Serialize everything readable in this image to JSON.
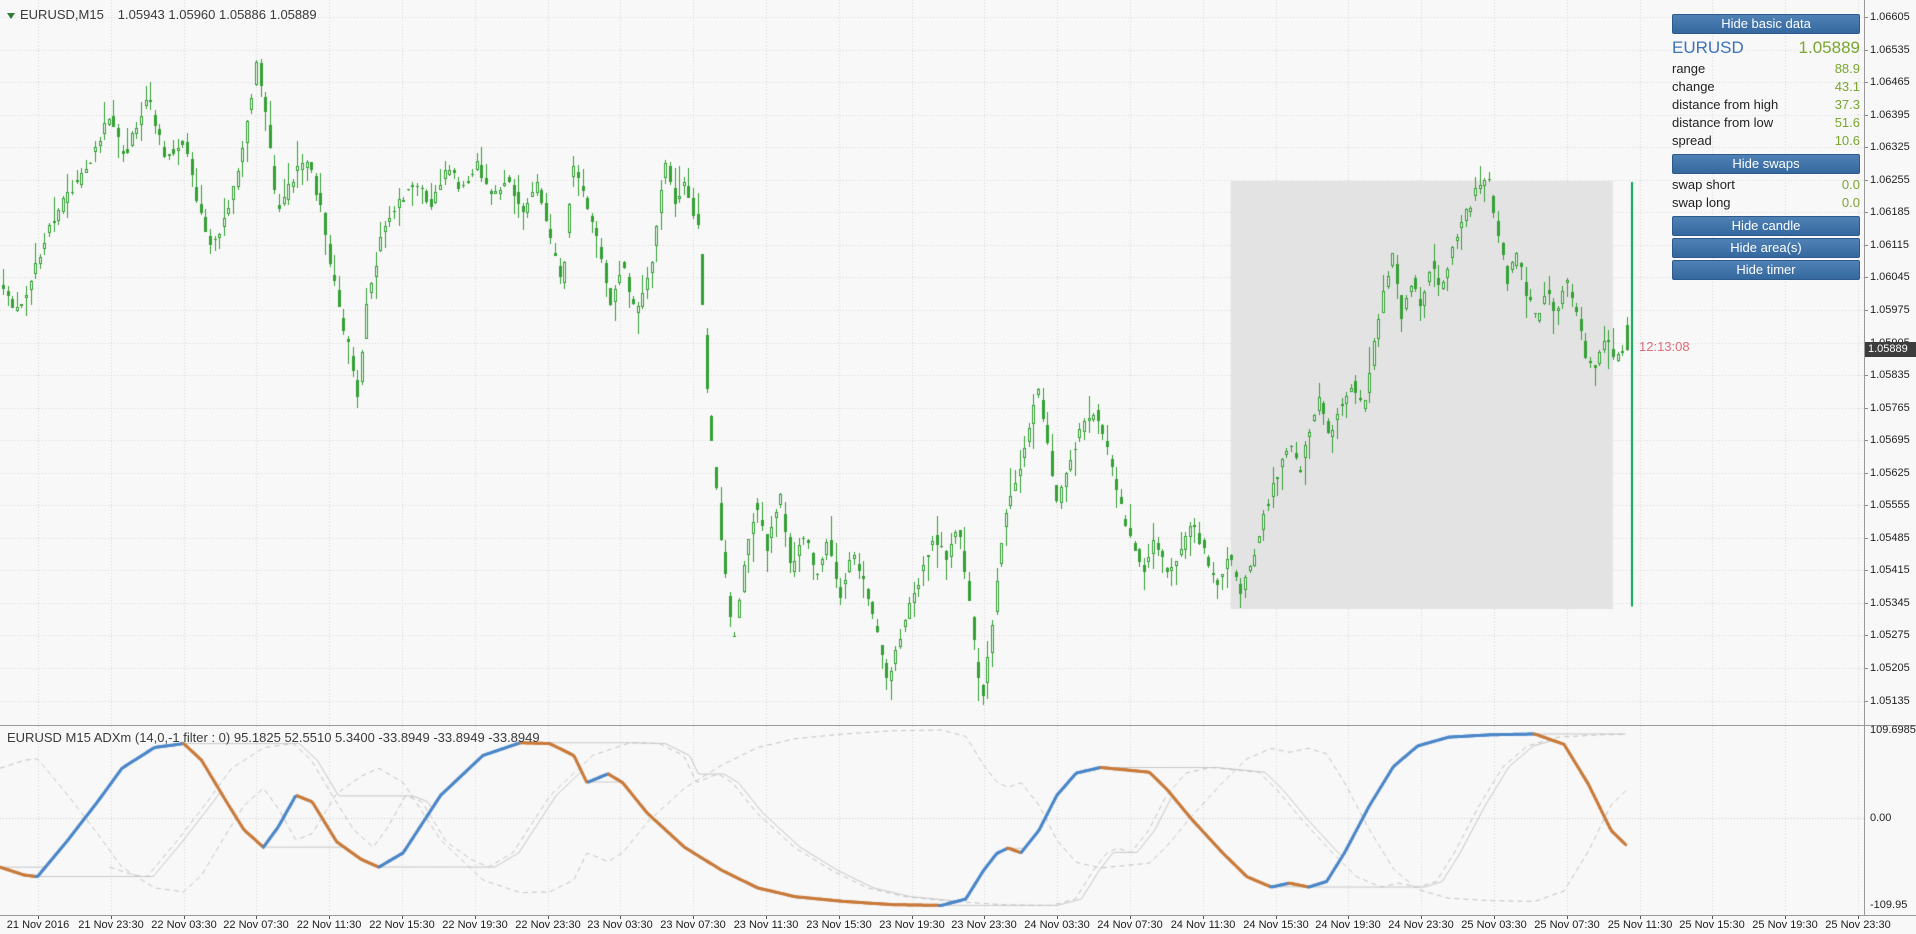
{
  "theme": {
    "bg": "#f8f8f8",
    "grid": "#d9d9d9",
    "candle_green": "#33a033",
    "session_line_green": "#00a651",
    "accent_blue": "#3c72b8",
    "value_green": "#7aa52e",
    "button_blue": "#35689e",
    "timer_red": "#e06a76",
    "indicator_up": "#4a86c8",
    "indicator_down": "#c87a3a",
    "highlight_area_gray": "#e3e3e3",
    "current_tag_bg": "#3d3d3d"
  },
  "header": {
    "symbol_timeframe": "EURUSD,M15",
    "quotes": "1.05943 1.05960 1.05886 1.05889"
  },
  "info_panel": {
    "buttons": {
      "basic": "Hide basic data",
      "swaps": "Hide swaps",
      "candle": "Hide candle",
      "areas": "Hide area(s)",
      "timer": "Hide timer"
    },
    "symbol": "EURUSD",
    "price": "1.05889",
    "rows": [
      {
        "label": "range",
        "value": "88.9"
      },
      {
        "label": "change",
        "value": "43.1"
      },
      {
        "label": "distance from high",
        "value": "37.3"
      },
      {
        "label": "distance from low",
        "value": "51.6"
      },
      {
        "label": "spread",
        "value": "10.6"
      }
    ],
    "swap_rows": [
      {
        "label": "swap short",
        "value": "0.0"
      },
      {
        "label": "swap long",
        "value": "0.0"
      }
    ]
  },
  "timer": {
    "text": "12:13:08"
  },
  "price_axis": {
    "current": "1.05889"
  },
  "indicator": {
    "title": "EURUSD M15 ADXm (14,0,-1 filter : 0) 95.1825 52.5510 5.3400 -33.8949 -33.8949 -33.8949",
    "axis": {
      "top": "109.6985",
      "zero": "0.00",
      "bottom": "-109.95"
    }
  },
  "chart_data": [
    {
      "type": "candlestick",
      "symbol": "EURUSD",
      "timeframe": "M15",
      "last_ohlc": {
        "open": 1.05943,
        "high": 1.0596,
        "low": 1.05886,
        "close": 1.05889
      },
      "current_price": 1.05889,
      "bars": 354,
      "y_axis": {
        "max": 1.06605,
        "min": 1.05135,
        "tick_step": 0.0007,
        "ticks": [
          "1.06605",
          "1.06535",
          "1.06465",
          "1.06395",
          "1.06325",
          "1.06255",
          "1.06185",
          "1.06115",
          "1.06045",
          "1.05975",
          "1.05905",
          "1.05835",
          "1.05765",
          "1.05695",
          "1.05625",
          "1.05555",
          "1.05485",
          "1.05415",
          "1.05345",
          "1.05275",
          "1.05205",
          "1.05135"
        ]
      },
      "x_axis_labels": [
        "21 Nov 2016",
        "21 Nov 23:30",
        "22 Nov 03:30",
        "22 Nov 07:30",
        "22 Nov 11:30",
        "22 Nov 15:30",
        "22 Nov 19:30",
        "22 Nov 23:30",
        "23 Nov 03:30",
        "23 Nov 07:30",
        "23 Nov 11:30",
        "23 Nov 15:30",
        "23 Nov 19:30",
        "23 Nov 23:30",
        "24 Nov 03:30",
        "24 Nov 07:30",
        "24 Nov 11:30",
        "24 Nov 15:30",
        "24 Nov 19:30",
        "24 Nov 23:30",
        "25 Nov 03:30",
        "25 Nov 07:30",
        "25 Nov 11:30",
        "25 Nov 15:30",
        "25 Nov 19:30",
        "25 Nov 23:30"
      ],
      "highlight_area": {
        "from_frac": 0.757,
        "to_frac": 0.992,
        "price_top": 1.06252,
        "price_bottom": 1.05332
      },
      "session_candle_line": {
        "price_high": 1.0625,
        "price_low": 1.05337
      },
      "price_path_anchors": [
        [
          0.0,
          1.0602
        ],
        [
          0.011,
          1.0597
        ],
        [
          0.03,
          1.0615
        ],
        [
          0.041,
          1.0622
        ],
        [
          0.053,
          1.0628
        ],
        [
          0.068,
          1.064
        ],
        [
          0.075,
          1.063
        ],
        [
          0.083,
          1.0636
        ],
        [
          0.09,
          1.0644
        ],
        [
          0.102,
          1.063
        ],
        [
          0.113,
          1.0634
        ],
        [
          0.122,
          1.062
        ],
        [
          0.129,
          1.0611
        ],
        [
          0.137,
          1.0616
        ],
        [
          0.147,
          1.0628
        ],
        [
          0.154,
          1.0642
        ],
        [
          0.158,
          1.0652
        ],
        [
          0.164,
          1.0638
        ],
        [
          0.171,
          1.0618
        ],
        [
          0.18,
          1.0626
        ],
        [
          0.189,
          1.063
        ],
        [
          0.197,
          1.062
        ],
        [
          0.205,
          1.0604
        ],
        [
          0.214,
          1.059
        ],
        [
          0.22,
          1.0578
        ],
        [
          0.226,
          1.06
        ],
        [
          0.235,
          1.0614
        ],
        [
          0.244,
          1.062
        ],
        [
          0.256,
          1.0625
        ],
        [
          0.265,
          1.062
        ],
        [
          0.274,
          1.0628
        ],
        [
          0.284,
          1.0624
        ],
        [
          0.293,
          1.0629
        ],
        [
          0.302,
          1.0622
        ],
        [
          0.312,
          1.0626
        ],
        [
          0.322,
          1.0618
        ],
        [
          0.331,
          1.0625
        ],
        [
          0.34,
          1.061
        ],
        [
          0.346,
          1.0603
        ],
        [
          0.352,
          1.0629
        ],
        [
          0.359,
          1.0622
        ],
        [
          0.368,
          1.0612
        ],
        [
          0.376,
          1.0598
        ],
        [
          0.383,
          1.0608
        ],
        [
          0.391,
          1.0596
        ],
        [
          0.4,
          1.0606
        ],
        [
          0.41,
          1.0631
        ],
        [
          0.415,
          1.062
        ],
        [
          0.421,
          1.0626
        ],
        [
          0.43,
          1.0614
        ],
        [
          0.436,
          1.0575
        ],
        [
          0.444,
          1.0548
        ],
        [
          0.451,
          1.0525
        ],
        [
          0.457,
          1.054
        ],
        [
          0.465,
          1.0556
        ],
        [
          0.472,
          1.0546
        ],
        [
          0.48,
          1.0558
        ],
        [
          0.487,
          1.0542
        ],
        [
          0.495,
          1.055
        ],
        [
          0.502,
          1.054
        ],
        [
          0.51,
          1.0548
        ],
        [
          0.517,
          1.0536
        ],
        [
          0.525,
          1.0545
        ],
        [
          0.532,
          1.0538
        ],
        [
          0.54,
          1.0528
        ],
        [
          0.546,
          1.0518
        ],
        [
          0.553,
          1.0526
        ],
        [
          0.56,
          1.0534
        ],
        [
          0.568,
          1.0542
        ],
        [
          0.575,
          1.0549
        ],
        [
          0.583,
          1.0544
        ],
        [
          0.59,
          1.0552
        ],
        [
          0.598,
          1.053
        ],
        [
          0.602,
          1.0518
        ],
        [
          0.605,
          1.0514
        ],
        [
          0.611,
          1.053
        ],
        [
          0.618,
          1.0552
        ],
        [
          0.626,
          1.0561
        ],
        [
          0.633,
          1.0571
        ],
        [
          0.639,
          1.0581
        ],
        [
          0.645,
          1.0568
        ],
        [
          0.651,
          1.0556
        ],
        [
          0.659,
          1.0566
        ],
        [
          0.666,
          1.0572
        ],
        [
          0.674,
          1.0576
        ],
        [
          0.681,
          1.0568
        ],
        [
          0.689,
          1.0556
        ],
        [
          0.696,
          1.0548
        ],
        [
          0.704,
          1.0542
        ],
        [
          0.711,
          1.0548
        ],
        [
          0.719,
          1.054
        ],
        [
          0.726,
          1.0545
        ],
        [
          0.734,
          1.0552
        ],
        [
          0.741,
          1.0546
        ],
        [
          0.749,
          1.0538
        ],
        [
          0.756,
          1.0545
        ],
        [
          0.764,
          1.0536
        ],
        [
          0.772,
          1.0545
        ],
        [
          0.779,
          1.0555
        ],
        [
          0.786,
          1.0562
        ],
        [
          0.794,
          1.057
        ],
        [
          0.8,
          1.0562
        ],
        [
          0.806,
          1.0572
        ],
        [
          0.812,
          1.0578
        ],
        [
          0.818,
          1.057
        ],
        [
          0.824,
          1.0576
        ],
        [
          0.833,
          1.0582
        ],
        [
          0.839,
          1.0576
        ],
        [
          0.845,
          1.0588
        ],
        [
          0.851,
          1.06
        ],
        [
          0.857,
          1.061
        ],
        [
          0.863,
          1.0596
        ],
        [
          0.869,
          1.0604
        ],
        [
          0.875,
          1.0598
        ],
        [
          0.881,
          1.0608
        ],
        [
          0.887,
          1.0602
        ],
        [
          0.895,
          1.0612
        ],
        [
          0.902,
          1.0618
        ],
        [
          0.91,
          1.0624
        ],
        [
          0.916,
          1.0626
        ],
        [
          0.922,
          1.0614
        ],
        [
          0.928,
          1.0604
        ],
        [
          0.934,
          1.061
        ],
        [
          0.94,
          1.06
        ],
        [
          0.946,
          1.0596
        ],
        [
          0.952,
          1.0602
        ],
        [
          0.958,
          1.0596
        ],
        [
          0.964,
          1.0604
        ],
        [
          0.97,
          1.0598
        ],
        [
          0.976,
          1.0588
        ],
        [
          0.982,
          1.0584
        ],
        [
          0.988,
          1.0592
        ],
        [
          0.994,
          1.0586
        ],
        [
          1.0,
          1.0589
        ]
      ]
    },
    {
      "type": "line",
      "name": "ADXm (14,0,-1 filter : 0)",
      "display_values": [
        "95.1825",
        "52.5510",
        "5.3400",
        "-33.8949",
        "-33.8949",
        "-33.8949"
      ],
      "y_range": [
        -122,
        115
      ],
      "axis_labels": {
        "top": 109.6985,
        "zero": 0.0,
        "bottom": -109.95
      },
      "anchors": [
        [
          0.0,
          -62
        ],
        [
          0.015,
          -72
        ],
        [
          0.023,
          -74
        ],
        [
          0.041,
          -30
        ],
        [
          0.06,
          20
        ],
        [
          0.075,
          62
        ],
        [
          0.095,
          88
        ],
        [
          0.113,
          93
        ],
        [
          0.124,
          72
        ],
        [
          0.139,
          21
        ],
        [
          0.15,
          -15
        ],
        [
          0.162,
          -37
        ],
        [
          0.171,
          -12
        ],
        [
          0.182,
          28
        ],
        [
          0.192,
          20
        ],
        [
          0.207,
          -30
        ],
        [
          0.222,
          -52
        ],
        [
          0.233,
          -62
        ],
        [
          0.248,
          -44
        ],
        [
          0.271,
          28
        ],
        [
          0.297,
          78
        ],
        [
          0.32,
          94
        ],
        [
          0.338,
          93
        ],
        [
          0.353,
          78
        ],
        [
          0.361,
          44
        ],
        [
          0.374,
          55
        ],
        [
          0.383,
          44
        ],
        [
          0.398,
          6
        ],
        [
          0.421,
          -37
        ],
        [
          0.444,
          -66
        ],
        [
          0.466,
          -88
        ],
        [
          0.489,
          -99
        ],
        [
          0.519,
          -105
        ],
        [
          0.549,
          -109
        ],
        [
          0.579,
          -110
        ],
        [
          0.594,
          -102
        ],
        [
          0.605,
          -66
        ],
        [
          0.613,
          -45
        ],
        [
          0.62,
          -38
        ],
        [
          0.628,
          -44
        ],
        [
          0.639,
          -16
        ],
        [
          0.65,
          28
        ],
        [
          0.662,
          56
        ],
        [
          0.677,
          63
        ],
        [
          0.692,
          60
        ],
        [
          0.707,
          57
        ],
        [
          0.718,
          35
        ],
        [
          0.733,
          -2
        ],
        [
          0.752,
          -44
        ],
        [
          0.767,
          -74
        ],
        [
          0.782,
          -87
        ],
        [
          0.793,
          -82
        ],
        [
          0.805,
          -87
        ],
        [
          0.816,
          -80
        ],
        [
          0.827,
          -44
        ],
        [
          0.842,
          14
        ],
        [
          0.857,
          64
        ],
        [
          0.872,
          90
        ],
        [
          0.891,
          101
        ],
        [
          0.917,
          104
        ],
        [
          0.944,
          105
        ],
        [
          0.962,
          92
        ],
        [
          0.977,
          42
        ],
        [
          0.991,
          -16
        ],
        [
          1.0,
          -33.8949
        ]
      ]
    }
  ]
}
